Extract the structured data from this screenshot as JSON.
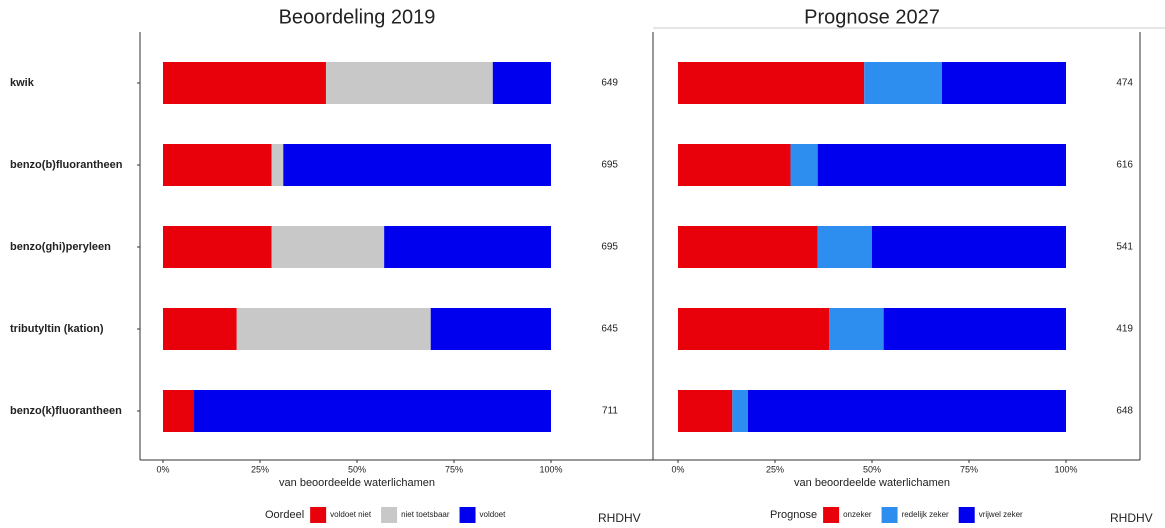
{
  "chart_data": [
    {
      "type": "bar",
      "orientation": "horizontal",
      "stacked": true,
      "title": "Beoordeling 2019",
      "categories": [
        "kwik",
        "benzo(b)fluorantheen",
        "benzo(ghi)peryleen",
        "tributyltin (kation)",
        "benzo(k)fluorantheen"
      ],
      "series": [
        {
          "name": "voldoet niet",
          "color": "#e8000b",
          "values": [
            42,
            28,
            28,
            19,
            8
          ]
        },
        {
          "name": "niet toetsbaar",
          "color": "#c8c8c8",
          "values": [
            43,
            3,
            29,
            50,
            0
          ]
        },
        {
          "name": "voldoet",
          "color": "#0000ee",
          "values": [
            15,
            69,
            43,
            31,
            92
          ]
        }
      ],
      "counts": [
        649,
        695,
        695,
        645,
        711
      ],
      "xlim": [
        0,
        100
      ],
      "xticks": [
        {
          "value": 0,
          "label": "0%"
        },
        {
          "value": 25,
          "label": "25%"
        },
        {
          "value": 50,
          "label": "50%"
        },
        {
          "value": 75,
          "label": "75%"
        },
        {
          "value": 100,
          "label": "100%"
        }
      ],
      "xlabel": "van beoordeelde waterlichamen",
      "legend_title": "Oordeel",
      "legend_position": "bottom",
      "annotation": "RHDHV"
    },
    {
      "type": "bar",
      "orientation": "horizontal",
      "stacked": true,
      "title": "Prognose 2027",
      "categories": [
        null,
        null,
        null,
        null,
        null
      ],
      "series": [
        {
          "name": "onzeker",
          "color": "#e8000b",
          "values": [
            48,
            29,
            36,
            39,
            14
          ]
        },
        {
          "name": "redelijk zeker",
          "color": "#2e8ef0",
          "values": [
            20,
            7,
            14,
            14,
            4
          ]
        },
        {
          "name": "vrijwel zeker",
          "color": "#0000ee",
          "values": [
            32,
            64,
            50,
            47,
            82
          ]
        }
      ],
      "counts": [
        474,
        616,
        541,
        419,
        648
      ],
      "xlim": [
        0,
        100
      ],
      "xticks": [
        {
          "value": 0,
          "label": "0%"
        },
        {
          "value": 25,
          "label": "25%"
        },
        {
          "value": 50,
          "label": "50%"
        },
        {
          "value": 75,
          "label": "75%"
        },
        {
          "value": 100,
          "label": "100%"
        }
      ],
      "xlabel": "van beoordeelde waterlichamen",
      "legend_title": "Prognose",
      "legend_position": "bottom",
      "annotation": "RHDHV"
    }
  ]
}
